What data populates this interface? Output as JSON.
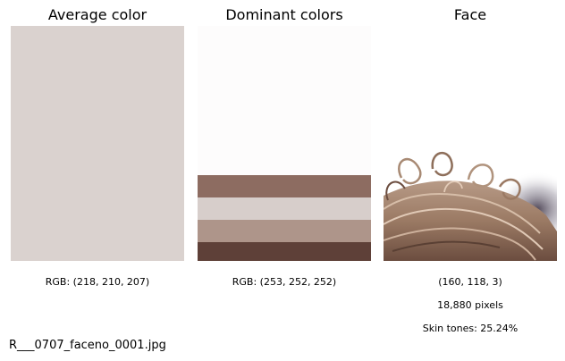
{
  "panels": {
    "average": {
      "title": "Average color",
      "caption": "RGB: (218, 210, 207)",
      "color": "#dad2cf"
    },
    "dominant": {
      "title": "Dominant colors",
      "caption": "RGB: (253, 252, 252)",
      "colors": [
        {
          "hex": "#fdfcfc",
          "share": 0.635
        },
        {
          "hex": "#8d6c61",
          "share": 0.095
        },
        {
          "hex": "#d7cecb",
          "share": 0.095
        },
        {
          "hex": "#ae958a",
          "share": 0.095
        },
        {
          "hex": "#5e4038",
          "share": 0.08
        }
      ]
    },
    "face": {
      "title": "Face",
      "rgb": "(160, 118, 3)",
      "pixels": "18,880 pixels",
      "skin_tones": "Skin tones: 25.24%",
      "hair_colors": {
        "light": "#c9ad96",
        "mid": "#9b7a64",
        "dark": "#5a4034",
        "shadow": "#3e3446"
      }
    }
  },
  "file_name": "R___0707_faceno_0001.jpg"
}
